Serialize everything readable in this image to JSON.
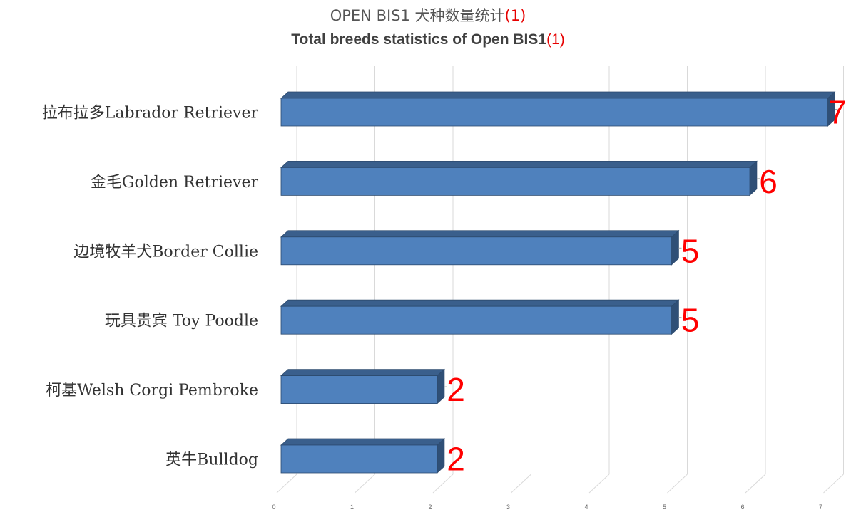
{
  "titles": {
    "line1_text": "OPEN BIS1 犬种数量统计",
    "line1_suffix": "(1)",
    "line2_text": "Total breeds statistics of  Open BIS1",
    "line2_suffix": "(1)"
  },
  "chart_data": {
    "type": "bar",
    "orientation": "horizontal",
    "style": "3d",
    "categories": [
      "拉布拉多Labrador Retriever",
      "金毛Golden Retriever",
      "边境牧羊犬Border Collie",
      "玩具贵宾 Toy Poodle",
      "柯基Welsh Corgi Pembroke",
      "英牛Bulldog"
    ],
    "values": [
      7,
      6,
      5,
      5,
      2,
      2
    ],
    "xlim": [
      0,
      7
    ],
    "x_ticks": [
      "0",
      "1",
      "2",
      "3",
      "4",
      "5",
      "6",
      "7"
    ],
    "grid": true,
    "legend": "none",
    "colors": {
      "bar_front": "#4f81bd",
      "bar_top": "#3a5f8c",
      "bar_side": "#2f4f76",
      "bar_edge": "#2c4a6e",
      "grid": "#d9d9d9",
      "data_label": "#ff0000"
    }
  }
}
